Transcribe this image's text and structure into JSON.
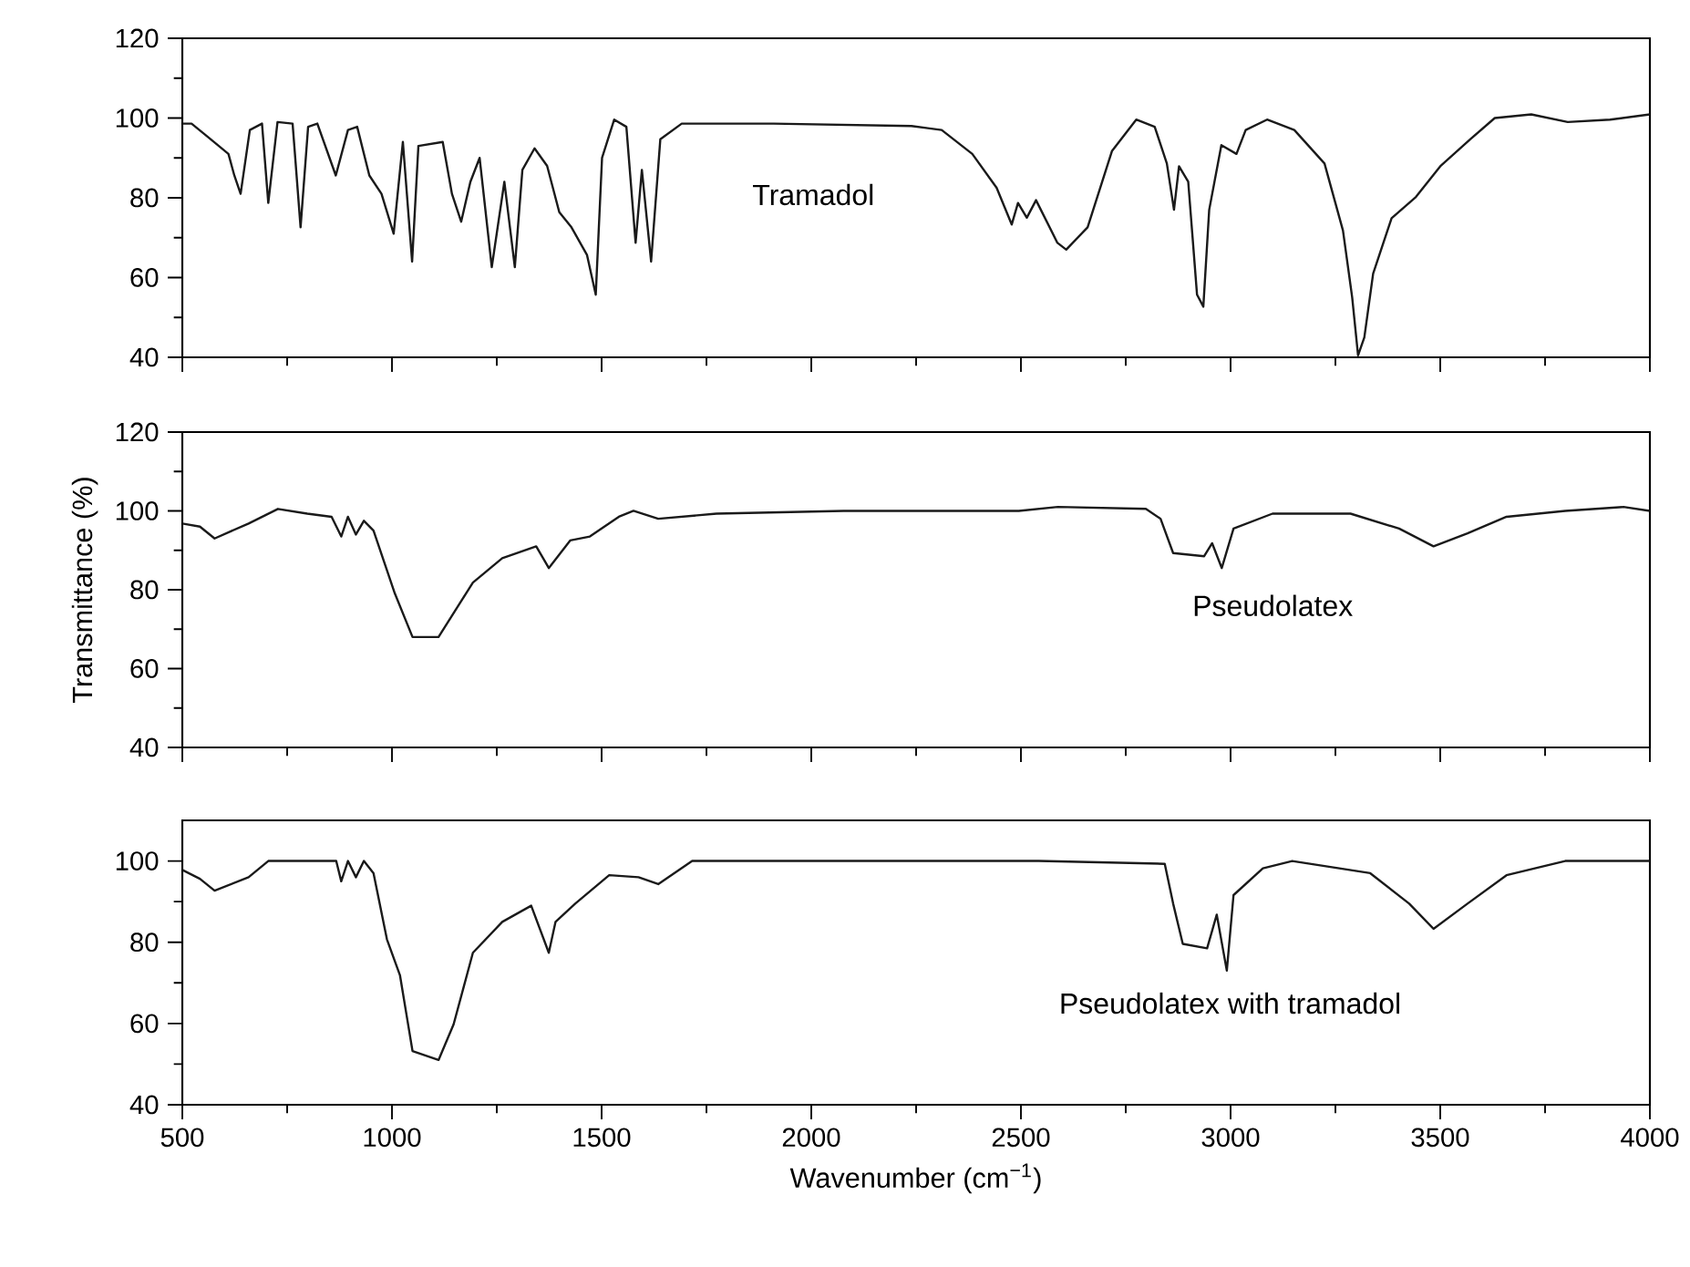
{
  "chart_data": [
    {
      "type": "line",
      "color": "#1a1a1a",
      "xlim": [
        500,
        4000
      ],
      "ylim": [
        40,
        120
      ],
      "tick_labels": "y",
      "xticks": [
        500,
        {
          "value": 750,
          "label": null
        },
        1000,
        {
          "value": 1250,
          "label": null
        },
        1500,
        {
          "value": 1750,
          "label": null
        },
        2000,
        {
          "value": 2250,
          "label": null
        },
        2500,
        {
          "value": 2750,
          "label": null
        },
        3000,
        {
          "value": 3250,
          "label": null
        },
        3500,
        {
          "value": 3750,
          "label": null
        },
        4000
      ],
      "yticks": [
        40,
        {
          "value": 50,
          "label": null
        },
        60,
        {
          "value": 70,
          "label": null
        },
        80,
        {
          "value": 90,
          "label": null
        },
        100,
        {
          "value": 110,
          "label": null
        },
        120
      ],
      "annotations": [
        "Tramadol"
      ],
      "x": [
        500,
        522,
        558,
        587,
        610,
        624,
        639,
        661,
        690,
        705,
        727,
        763,
        782,
        800,
        822,
        866,
        895,
        917,
        946,
        975,
        1004,
        1026,
        1048,
        1063,
        1121,
        1143,
        1165,
        1187,
        1209,
        1238,
        1268,
        1293,
        1311,
        1340,
        1370,
        1399,
        1428,
        1465,
        1486,
        1501,
        1530,
        1559,
        1581,
        1596,
        1618,
        1640,
        1691,
        1910,
        2239,
        2311,
        2384,
        2442,
        2478,
        2493,
        2514,
        2536,
        2587,
        2608,
        2659,
        2717,
        2775,
        2819,
        2848,
        2865,
        2877,
        2899,
        2920,
        2935,
        2949,
        2978,
        3014,
        3036,
        3087,
        3152,
        3224,
        3268,
        3290,
        3304,
        3319,
        3340,
        3384,
        3442,
        3500,
        3572,
        3630,
        3717,
        3804,
        3905,
        4000
      ],
      "values": [
        98.6,
        98.6,
        95.5,
        93,
        91,
        85.6,
        81,
        97,
        98.6,
        78.7,
        99,
        98.6,
        72.6,
        97.8,
        98.6,
        85.6,
        97,
        97.8,
        85.6,
        81,
        71,
        94,
        64,
        93,
        94,
        81,
        74,
        84,
        90,
        62.6,
        84,
        62.6,
        87,
        92.4,
        88,
        76.4,
        72.6,
        65.7,
        55.7,
        90,
        99.6,
        97.8,
        68.7,
        87,
        64,
        94.7,
        98.6,
        98.6,
        98,
        97,
        91,
        82.5,
        73.3,
        78.7,
        75,
        79.4,
        68.7,
        67,
        72.6,
        91.7,
        99.6,
        97.8,
        88.6,
        77,
        87.9,
        84,
        55.7,
        52.7,
        77,
        93.2,
        91,
        97,
        99.6,
        97,
        88.6,
        71.8,
        55,
        40.5,
        45,
        61,
        74.9,
        80.2,
        87.9,
        94.7,
        100,
        100.9,
        99,
        99.6,
        100.9
      ]
    },
    {
      "type": "line",
      "color": "#1a1a1a",
      "xlim": [
        500,
        4000
      ],
      "ylim": [
        40,
        120
      ],
      "tick_labels": "y",
      "ylabel": "Transmittance (%)",
      "xticks": [
        500,
        {
          "value": 750,
          "label": null
        },
        1000,
        {
          "value": 1250,
          "label": null
        },
        1500,
        {
          "value": 1750,
          "label": null
        },
        2000,
        {
          "value": 2250,
          "label": null
        },
        2500,
        {
          "value": 2750,
          "label": null
        },
        3000,
        {
          "value": 3250,
          "label": null
        },
        3500,
        {
          "value": 3750,
          "label": null
        },
        4000
      ],
      "yticks": [
        40,
        {
          "value": 50,
          "label": null
        },
        60,
        {
          "value": 70,
          "label": null
        },
        80,
        {
          "value": 90,
          "label": null
        },
        100,
        {
          "value": 110,
          "label": null
        },
        120
      ],
      "annotations": [
        "Pseudolatex"
      ],
      "x": [
        500,
        542,
        577,
        658,
        728,
        798,
        856,
        879,
        895,
        914,
        933,
        956,
        1007,
        1049,
        1111,
        1193,
        1263,
        1344,
        1374,
        1425,
        1472,
        1541,
        1576,
        1635,
        1774,
        2077,
        2495,
        2588,
        2798,
        2833,
        2863,
        2937,
        2956,
        2979,
        3007,
        3100,
        3286,
        3402,
        3484,
        3565,
        3658,
        3798,
        3937,
        4000
      ],
      "values": [
        96.8,
        96,
        93,
        96.8,
        100.5,
        99.3,
        98.5,
        93.5,
        98.5,
        94,
        97.5,
        95,
        79,
        68,
        68,
        81.8,
        88,
        91,
        85.5,
        92.5,
        93.5,
        98.5,
        100,
        98,
        99.3,
        100,
        100,
        101,
        100.5,
        98,
        89.3,
        88.5,
        91.8,
        85.5,
        95.5,
        99.3,
        99.3,
        95.5,
        91,
        94.3,
        98.5,
        100,
        101,
        100
      ]
    },
    {
      "type": "line",
      "color": "#1a1a1a",
      "xlim": [
        500,
        4000
      ],
      "ylim": [
        40,
        110
      ],
      "xlabel": "Wavenumber (cm$^{−1}$)",
      "xticks": [
        500,
        {
          "value": 750,
          "label": null
        },
        1000,
        {
          "value": 1250,
          "label": null
        },
        1500,
        {
          "value": 1750,
          "label": null
        },
        2000,
        {
          "value": 2250,
          "label": null
        },
        2500,
        {
          "value": 2750,
          "label": null
        },
        3000,
        {
          "value": 3250,
          "label": null
        },
        3500,
        {
          "value": 3750,
          "label": null
        },
        4000
      ],
      "yticks": [
        40,
        {
          "value": 50,
          "label": null
        },
        60,
        {
          "value": 70,
          "label": null
        },
        80,
        {
          "value": 90,
          "label": null
        },
        100
      ],
      "annotations": [
        "Pseudolatex with tramadol"
      ],
      "x": [
        500,
        542,
        577,
        658,
        705,
        786,
        867,
        879,
        895,
        914,
        933,
        956,
        988,
        1019,
        1049,
        1111,
        1147,
        1193,
        1263,
        1332,
        1374,
        1390,
        1437,
        1518,
        1588,
        1635,
        1716,
        2077,
        2542,
        2843,
        2863,
        2886,
        2944,
        2967,
        2991,
        3007,
        3077,
        3147,
        3333,
        3426,
        3484,
        3565,
        3658,
        3798,
        4000
      ],
      "values": [
        97.8,
        95.6,
        92.7,
        96,
        100,
        100,
        100,
        95,
        100,
        96,
        100,
        97,
        80.7,
        71.9,
        53.2,
        51,
        59.8,
        77.4,
        85,
        89,
        77.4,
        85,
        89.5,
        96.5,
        96,
        94.3,
        100,
        100,
        100,
        99.3,
        89.5,
        79.6,
        78.5,
        86.8,
        73,
        91.6,
        98.2,
        100,
        97,
        89.5,
        83.3,
        89.5,
        96.5,
        100,
        100
      ]
    }
  ]
}
